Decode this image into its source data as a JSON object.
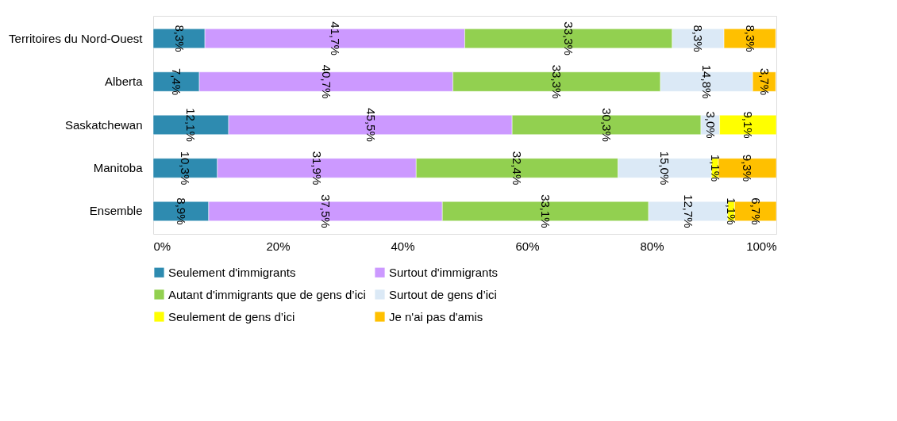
{
  "chart_data": {
    "type": "bar",
    "orientation": "horizontal",
    "stacked": true,
    "categories": [
      "Territoires du Nord-Ouest",
      "Alberta",
      "Saskatchewan",
      "Manitoba",
      "Ensemble"
    ],
    "series": [
      {
        "name": "Seulement d'immigrants",
        "color": "#2e8bb0",
        "values": [
          8.3,
          7.4,
          12.1,
          10.3,
          8.9
        ],
        "value_labels": [
          "8,3%",
          "7,4%",
          "12,1%",
          "10,3%",
          "8,9%"
        ]
      },
      {
        "name": "Surtout d'immigrants",
        "color": "#cc99ff",
        "values": [
          41.7,
          40.7,
          45.5,
          31.9,
          37.5
        ],
        "value_labels": [
          "41,7%",
          "40,7%",
          "45,5%",
          "31,9%",
          "37,5%"
        ]
      },
      {
        "name": "Autant d'immigrants que de gens d’ici",
        "color": "#92d050",
        "values": [
          33.3,
          33.3,
          30.3,
          32.4,
          33.1
        ],
        "value_labels": [
          "33,3%",
          "33,3%",
          "30,3%",
          "32,4%",
          "33,1%"
        ]
      },
      {
        "name": "Surtout de gens d’ici",
        "color": "#dbe9f6",
        "values": [
          8.3,
          14.8,
          3.0,
          15.0,
          12.7
        ],
        "value_labels": [
          "8,3%",
          "14,8%",
          "3,0%",
          "15,0%",
          "12,7%"
        ]
      },
      {
        "name": "Seulement de gens d’ici",
        "color": "#ffff00",
        "values": [
          null,
          null,
          9.1,
          1.1,
          1.1
        ],
        "value_labels": [
          null,
          null,
          "9,1%",
          "1,1%",
          "1,1%"
        ]
      },
      {
        "name": "Je n'ai pas d'amis",
        "color": "#ffc000",
        "values": [
          8.3,
          3.7,
          null,
          9.3,
          6.7
        ],
        "value_labels": [
          "8,3%",
          "3,7%",
          null,
          "9,3%",
          "6,7%"
        ]
      }
    ],
    "xlim": [
      0,
      100
    ],
    "xticks": [
      {
        "value": 0,
        "label": "0%"
      },
      {
        "value": 20,
        "label": "20%"
      },
      {
        "value": 40,
        "label": "40%"
      },
      {
        "value": 60,
        "label": "60%"
      },
      {
        "value": 80,
        "label": "80%"
      },
      {
        "value": 100,
        "label": "100%"
      }
    ],
    "grid": false,
    "legend": "bottom"
  }
}
